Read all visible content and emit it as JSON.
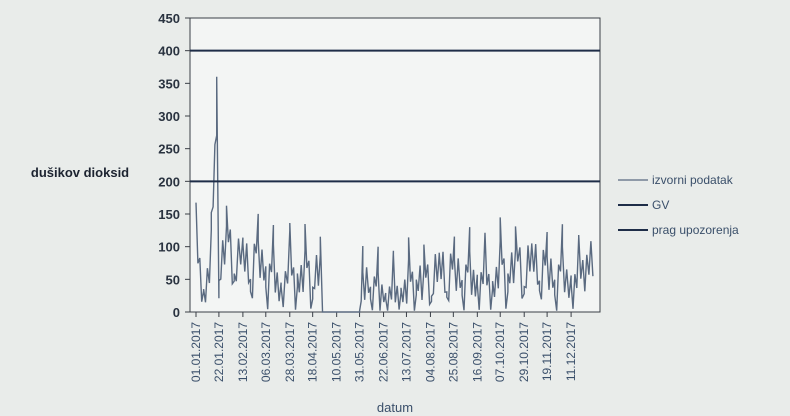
{
  "chart_data": {
    "type": "line",
    "title": "",
    "xlabel": "datum",
    "ylabel": "dušikov dioksid",
    "ylim": [
      0,
      450
    ],
    "yticks": [
      "450",
      "400",
      "350",
      "300",
      "250",
      "200",
      "150",
      "100",
      "50",
      "0"
    ],
    "xticks": [
      "01.01.2017",
      "22.01.2017",
      "13.02.2017",
      "06.03.2017",
      "28.03.2017",
      "18.04.2017",
      "10.05.2017",
      "31.05.2017",
      "22.06.2017",
      "13.07.2017",
      "04.08.2017",
      "25.08.2017",
      "16.09.2017",
      "07.10.2017",
      "29.10.2017",
      "19.11.2017",
      "11.12.2017"
    ],
    "grid": false,
    "legend_position": "right",
    "series": [
      {
        "name": "izvorni podatak",
        "color": "#5a6a80",
        "kind": "daily-signal",
        "points": [
          [
            "01.01.2017",
            145
          ],
          [
            "08.01.2017",
            20
          ],
          [
            "15.01.2017",
            110
          ],
          [
            "20.01.2017",
            315
          ],
          [
            "22.01.2017",
            25
          ],
          [
            "29.01.2017",
            130
          ],
          [
            "05.02.2017",
            40
          ],
          [
            "13.02.2017",
            95
          ],
          [
            "20.02.2017",
            30
          ],
          [
            "27.02.2017",
            110
          ],
          [
            "06.03.2017",
            35
          ],
          [
            "13.03.2017",
            90
          ],
          [
            "20.03.2017",
            25
          ],
          [
            "28.03.2017",
            100
          ],
          [
            "04.04.2017",
            30
          ],
          [
            "11.04.2017",
            90
          ],
          [
            "18.04.2017",
            20
          ],
          [
            "25.04.2017",
            85
          ],
          [
            "27.04.2017",
            0
          ],
          [
            "31.05.2017",
            0
          ],
          [
            "03.06.2017",
            60
          ],
          [
            "10.06.2017",
            20
          ],
          [
            "17.06.2017",
            55
          ],
          [
            "24.06.2017",
            15
          ],
          [
            "01.07.2017",
            60
          ],
          [
            "08.07.2017",
            20
          ],
          [
            "15.07.2017",
            70
          ],
          [
            "22.07.2017",
            25
          ],
          [
            "29.07.2017",
            65
          ],
          [
            "05.08.2017",
            15
          ],
          [
            "12.08.2017",
            75
          ],
          [
            "19.08.2017",
            20
          ],
          [
            "26.08.2017",
            80
          ],
          [
            "02.09.2017",
            25
          ],
          [
            "09.09.2017",
            85
          ],
          [
            "16.09.2017",
            30
          ],
          [
            "23.09.2017",
            90
          ],
          [
            "30.09.2017",
            25
          ],
          [
            "07.10.2017",
            100
          ],
          [
            "14.10.2017",
            30
          ],
          [
            "21.10.2017",
            95
          ],
          [
            "29.10.2017",
            25
          ],
          [
            "05.11.2017",
            90
          ],
          [
            "12.11.2017",
            30
          ],
          [
            "19.11.2017",
            85
          ],
          [
            "26.11.2017",
            25
          ],
          [
            "03.12.2017",
            90
          ],
          [
            "11.12.2017",
            30
          ],
          [
            "18.12.2017",
            85
          ],
          [
            "31.12.2017",
            60
          ]
        ]
      },
      {
        "name": "GV",
        "color": "#1e2d48",
        "kind": "hline",
        "value": 400
      },
      {
        "name": "prag upozorenja",
        "color": "#1e2d48",
        "kind": "hline",
        "value": 200
      }
    ]
  }
}
